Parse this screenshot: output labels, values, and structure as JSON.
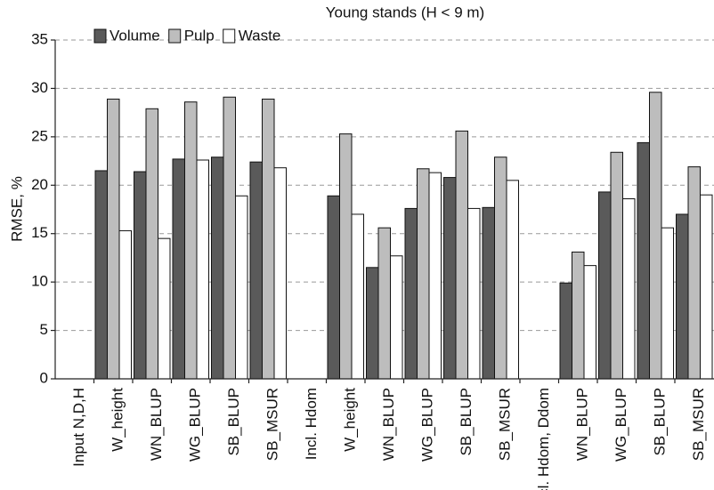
{
  "chart_data": {
    "type": "bar",
    "title": "Young stands (H < 9 m)",
    "y_label": "RMSE, %",
    "categories": [
      "Input N,D,H",
      "W_height",
      "WN_BLUP",
      "WG_BLUP",
      "SB_BLUP",
      "SB_MSUR",
      "Incl. Hdom",
      "W_height",
      "WN_BLUP",
      "WG_BLUP",
      "SB_BLUP",
      "SB_MSUR",
      "ncl. Hdom, Ddom",
      "WN_BLUP",
      "WG_BLUP",
      "SB_BLUP",
      "SB_MSUR"
    ],
    "series": [
      {
        "name": "Volume",
        "color": "#5a5a5a",
        "values": [
          null,
          21.5,
          21.4,
          22.7,
          22.9,
          22.4,
          null,
          18.9,
          11.5,
          17.6,
          20.8,
          17.7,
          null,
          9.9,
          19.3,
          24.4,
          17.0
        ]
      },
      {
        "name": "Pulp",
        "color": "#bdbdbd",
        "values": [
          null,
          28.9,
          27.9,
          28.6,
          29.1,
          28.9,
          null,
          25.3,
          15.6,
          21.7,
          25.6,
          22.9,
          null,
          13.1,
          23.4,
          29.6,
          21.9
        ]
      },
      {
        "name": "Waste",
        "color": "#ffffff",
        "values": [
          null,
          15.3,
          14.5,
          22.6,
          18.9,
          21.8,
          null,
          17.0,
          12.7,
          21.3,
          17.6,
          20.5,
          null,
          11.7,
          18.6,
          15.6,
          19.0
        ]
      }
    ],
    "ylim": [
      0,
      35
    ],
    "yticks": [
      0,
      5,
      10,
      15,
      20,
      25,
      30,
      35
    ],
    "grid": true,
    "legend": "upper left"
  }
}
